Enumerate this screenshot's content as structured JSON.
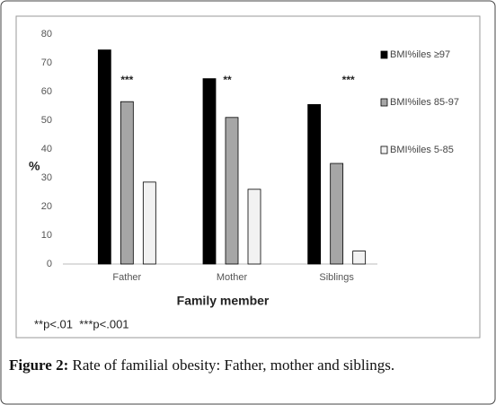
{
  "chart_data": {
    "type": "bar",
    "y_label": "%",
    "x_label": "Family member",
    "categories": [
      "Father",
      "Mother",
      "Siblings"
    ],
    "series": [
      {
        "name": "BMI%iles ≥97",
        "color": "#000000",
        "values": [
          74.5,
          64.5,
          55.5
        ]
      },
      {
        "name": "BMI%iles 85-97",
        "color": "#a6a6a6",
        "values": [
          56.5,
          51,
          35
        ]
      },
      {
        "name": "BMI%iles 5-85",
        "color": "#f2f2f2",
        "values": [
          28.5,
          26,
          4.5
        ]
      }
    ],
    "ylim": [
      0,
      80
    ],
    "yticks": [
      0,
      10,
      20,
      30,
      40,
      50,
      60,
      70,
      80
    ],
    "grid": false,
    "legend": "right",
    "annotations": [
      "***",
      "**",
      "***"
    ],
    "footnote": "**p<.01  ***p<.001"
  },
  "caption": {
    "label": "Figure 2:",
    "text": "Rate of familial obesity: Father, mother and siblings."
  }
}
